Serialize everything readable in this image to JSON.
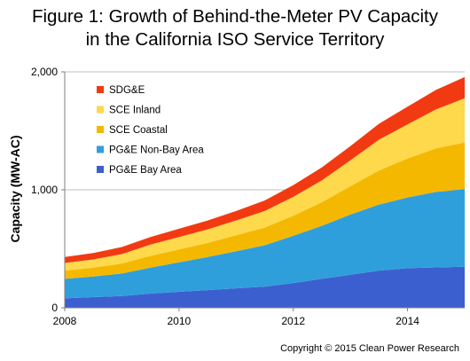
{
  "chart_data": {
    "type": "area",
    "stacked": true,
    "title": [
      "Figure 1: Growth of Behind-the-Meter PV Capacity",
      "in the California  ISO Service Territory"
    ],
    "ylabel": "Capacity (MW-AC)",
    "xlabel": "",
    "xlim": [
      2008,
      2015
    ],
    "ylim": [
      0,
      2000
    ],
    "yticks": [
      0,
      1000,
      2000
    ],
    "ytick_labels": [
      "0",
      "1,000",
      "2,000"
    ],
    "xticks": [
      2008,
      2010,
      2012,
      2014
    ],
    "xtick_labels": [
      "2008",
      "2010",
      "2012",
      "2014"
    ],
    "grid": "horizontal",
    "legend_position": "top-left",
    "x": [
      2008.0,
      2008.5,
      2009.0,
      2009.5,
      2010.0,
      2010.5,
      2011.0,
      2011.5,
      2012.0,
      2012.5,
      2013.0,
      2013.5,
      2014.0,
      2014.5,
      2015.0
    ],
    "series": [
      {
        "name": "PG&E Bay Area",
        "color": "#3c5fcf",
        "values": [
          80,
          90,
          100,
          120,
          135,
          150,
          165,
          180,
          210,
          245,
          280,
          315,
          335,
          342,
          348
        ]
      },
      {
        "name": "PG&E Non-Bay Area",
        "color": "#2f9fdc",
        "values": [
          165,
          175,
          190,
          220,
          250,
          280,
          315,
          350,
          400,
          450,
          510,
          560,
          600,
          640,
          658
        ]
      },
      {
        "name": "SCE Coastal",
        "color": "#f5b800",
        "values": [
          70,
          75,
          85,
          100,
          110,
          120,
          135,
          150,
          170,
          200,
          240,
          290,
          330,
          370,
          395
        ]
      },
      {
        "name": "SCE Inland",
        "color": "#fdd94b",
        "values": [
          65,
          70,
          80,
          95,
          105,
          115,
          125,
          140,
          160,
          185,
          220,
          260,
          290,
          330,
          375
        ]
      },
      {
        "name": "SDG&E",
        "color": "#f23a12",
        "values": [
          50,
          55,
          60,
          65,
          70,
          75,
          80,
          90,
          100,
          110,
          120,
          135,
          150,
          165,
          180
        ]
      }
    ],
    "legend_order": [
      "SDG&E",
      "SCE Inland",
      "SCE Coastal",
      "PG&E Non-Bay Area",
      "PG&E Bay Area"
    ]
  },
  "footer": {
    "copyright": "Copyright © 2015 Clean Power Research"
  }
}
